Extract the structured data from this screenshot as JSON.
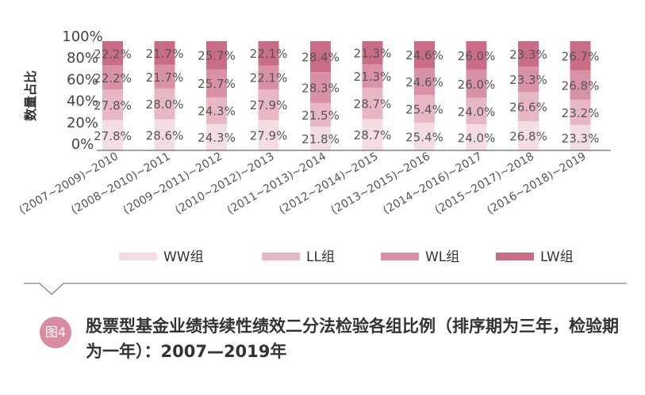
{
  "chart_data": {
    "type": "bar",
    "stacked": true,
    "ylabel": "数量占比",
    "yticks": [
      "100%",
      "80%",
      "60%",
      "40%",
      "20%",
      "0%"
    ],
    "ylim": [
      0,
      100
    ],
    "categories": [
      "(2007~2009)~2010",
      "(2008~2010)~2011",
      "(2009~2011)~2012",
      "(2010~2012)~2013",
      "(2011~2013)~2014",
      "(2012~2014)~2015",
      "(2013~2015)~2016",
      "(2014~2016)~2017",
      "(2015~2017)~2018",
      "(2016~2018)~2019"
    ],
    "series": [
      {
        "name": "WW组",
        "color": "#f3dce2",
        "values": [
          27.8,
          28.6,
          24.3,
          27.9,
          21.8,
          28.7,
          25.4,
          24.0,
          26.8,
          23.3
        ],
        "labels": [
          "27.8%",
          "28.6%",
          "24.3%",
          "27.9%",
          "21.8%",
          "28.7%",
          "25.4%",
          "24.0%",
          "26.8%",
          "23.3%"
        ]
      },
      {
        "name": "LL组",
        "color": "#e8b7c4",
        "values": [
          27.8,
          28.0,
          24.3,
          27.9,
          21.5,
          28.7,
          25.4,
          24.0,
          26.6,
          23.2
        ],
        "labels": [
          "27.8%",
          "28.0%",
          "24.3%",
          "27.9%",
          "21.5%",
          "28.7%",
          "25.4%",
          "24.0%",
          "26.6%",
          "23.2%"
        ]
      },
      {
        "name": "WL组",
        "color": "#d991a5",
        "values": [
          22.2,
          21.7,
          25.7,
          22.1,
          28.3,
          21.3,
          24.6,
          26.0,
          23.3,
          26.8
        ],
        "labels": [
          "22.2%",
          "21.7%",
          "25.7%",
          "22.1%",
          "28.3%",
          "21.3%",
          "24.6%",
          "26.0%",
          "23.3%",
          "26.8%"
        ]
      },
      {
        "name": "LW组",
        "color": "#c96c86",
        "values": [
          22.2,
          21.7,
          25.7,
          22.1,
          28.4,
          21.3,
          24.6,
          26.0,
          23.3,
          26.7
        ],
        "labels": [
          "22.2%",
          "21.7%",
          "25.7%",
          "22.1%",
          "28.4%",
          "21.3%",
          "24.6%",
          "26.0%",
          "23.3%",
          "26.7%"
        ]
      }
    ],
    "legend_position": "bottom"
  },
  "caption": {
    "badge": "图4",
    "text": "股票型基金业绩持续性绩效二分法检验各组比例（排序期为三年，检验期为一年）：2007—2019年"
  }
}
